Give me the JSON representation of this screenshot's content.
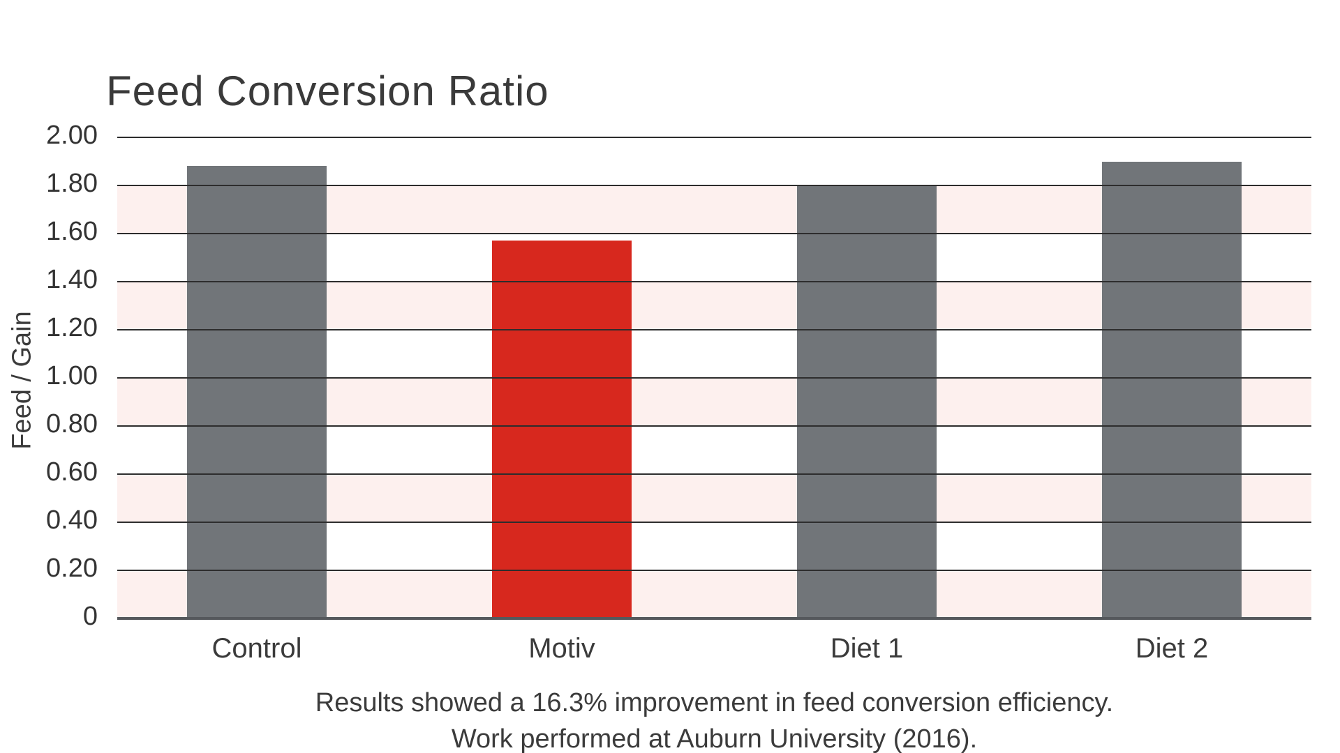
{
  "chart_data": {
    "type": "bar",
    "title": "Feed Conversion Ratio",
    "ylabel": "Feed / Gain",
    "xlabel": "",
    "categories": [
      "Control",
      "Motiv",
      "Diet 1",
      "Diet 2"
    ],
    "values": [
      1.88,
      1.57,
      1.8,
      1.9
    ],
    "bar_colors": [
      "#717579",
      "#d7281e",
      "#717579",
      "#717579"
    ],
    "highlighted_category": "Motiv",
    "ylim": [
      0,
      2.0
    ],
    "ytick_step": 0.2,
    "ytick_labels": [
      "0",
      "0.20",
      "0.40",
      "0.60",
      "0.80",
      "1.00",
      "1.20",
      "1.40",
      "1.60",
      "1.80",
      "2.00"
    ],
    "grid": true,
    "legend": "none",
    "band_color": "#fdf0ee",
    "gridline_color": "#2d2d2d",
    "baseline_color": "#55585c",
    "title_color": "#3a3a3a",
    "text_color": "#3b3b3b"
  },
  "caption": {
    "line1": "Results showed a 16.3% improvement in feed conversion efficiency.",
    "line2": "Work performed at Auburn University (2016)."
  }
}
